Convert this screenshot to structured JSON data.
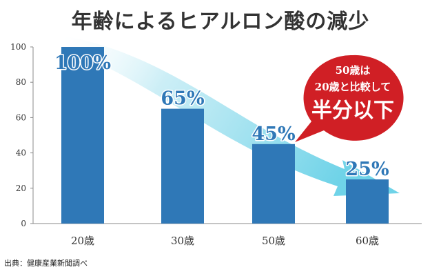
{
  "title": "年齢によるヒアルロン酸の減少",
  "source": "出典：健康産業新聞調べ",
  "callout": {
    "line1": "50歳は",
    "line2": "20歳と比較して",
    "line3": "半分以下"
  },
  "colors": {
    "bar": "#2f78b7",
    "bar_label_fill": "#2f78b7",
    "bar_label_stroke": "#ffffff",
    "arrow": "#7fd9ea",
    "callout": "#d01f25",
    "axis": "#888888",
    "title": "#333333"
  },
  "chart_data": {
    "type": "bar",
    "categories": [
      "20歳",
      "30歳",
      "50歳",
      "60歳"
    ],
    "values": [
      100,
      65,
      45,
      25
    ],
    "data_labels": [
      "100%",
      "65%",
      "45%",
      "25%"
    ],
    "title": "年齢によるヒアルロン酸の減少",
    "xlabel": "",
    "ylabel": "",
    "ylim": [
      0,
      100
    ],
    "yticks": [
      0,
      20,
      40,
      60,
      80,
      100
    ],
    "grid": false,
    "legend": "none"
  }
}
